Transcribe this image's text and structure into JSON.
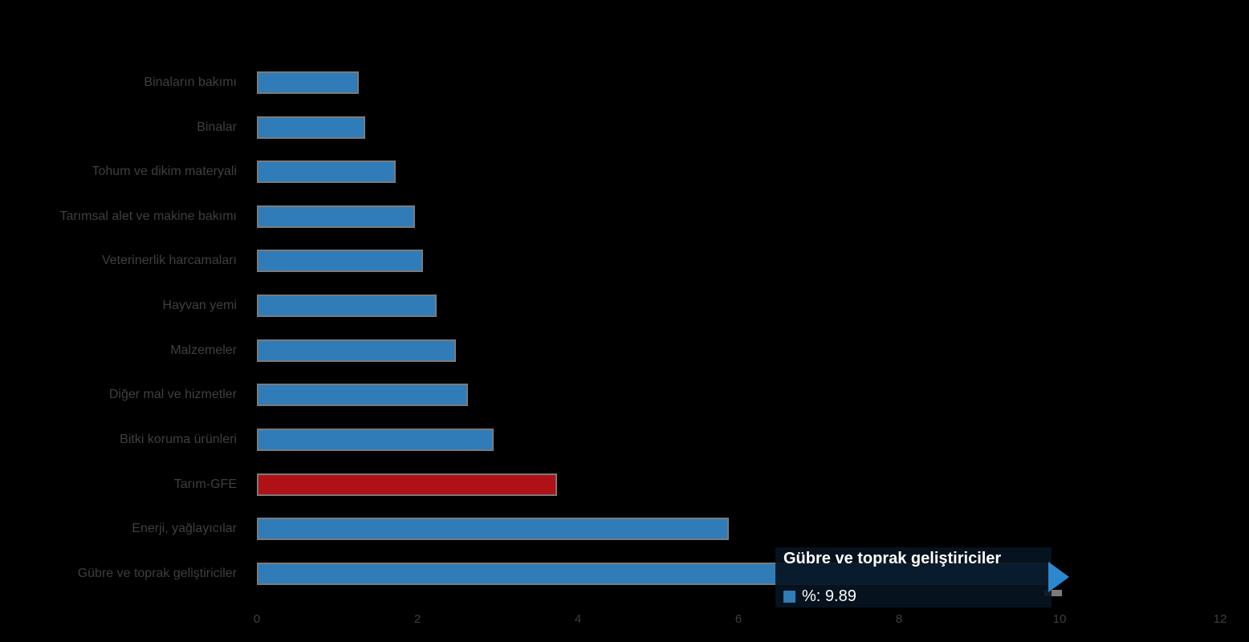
{
  "chart_data": {
    "type": "bar",
    "orientation": "horizontal",
    "title": "",
    "xlabel": "",
    "ylabel": "",
    "xlim": [
      0,
      12
    ],
    "x_ticks": [
      0,
      2,
      4,
      6,
      8,
      10,
      12
    ],
    "grid": false,
    "legend_position": "none",
    "categories": [
      "Binaların bakımı",
      "Binalar",
      "Tohum ve dikim materyali",
      "Tarımsal alet ve makine bakımı",
      "Veterinerlik harcamaları",
      "Hayvan yemi",
      "Malzemeler",
      "Diğer mal ve hizmetler",
      "Bitki koruma ürünleri",
      "Tarım-GFE",
      "Enerji, yağlayıcılar",
      "Gübre ve toprak geliştiriciler"
    ],
    "values": [
      1.27,
      1.35,
      1.73,
      1.97,
      2.07,
      2.24,
      2.48,
      2.63,
      2.95,
      3.74,
      5.88,
      9.89
    ],
    "highlight_index": 9,
    "colors": {
      "bar": "#2f7cb8",
      "highlight_bar": "#b01116",
      "bar_border": "#7a7a7a",
      "background": "#000000",
      "label_text": "#3f3f3f",
      "tooltip_bg": "#071421",
      "tooltip_text": "#ffffff"
    }
  },
  "tooltip": {
    "title": "Gübre ve toprak geliştiriciler",
    "value_display": "%: 9.89"
  }
}
